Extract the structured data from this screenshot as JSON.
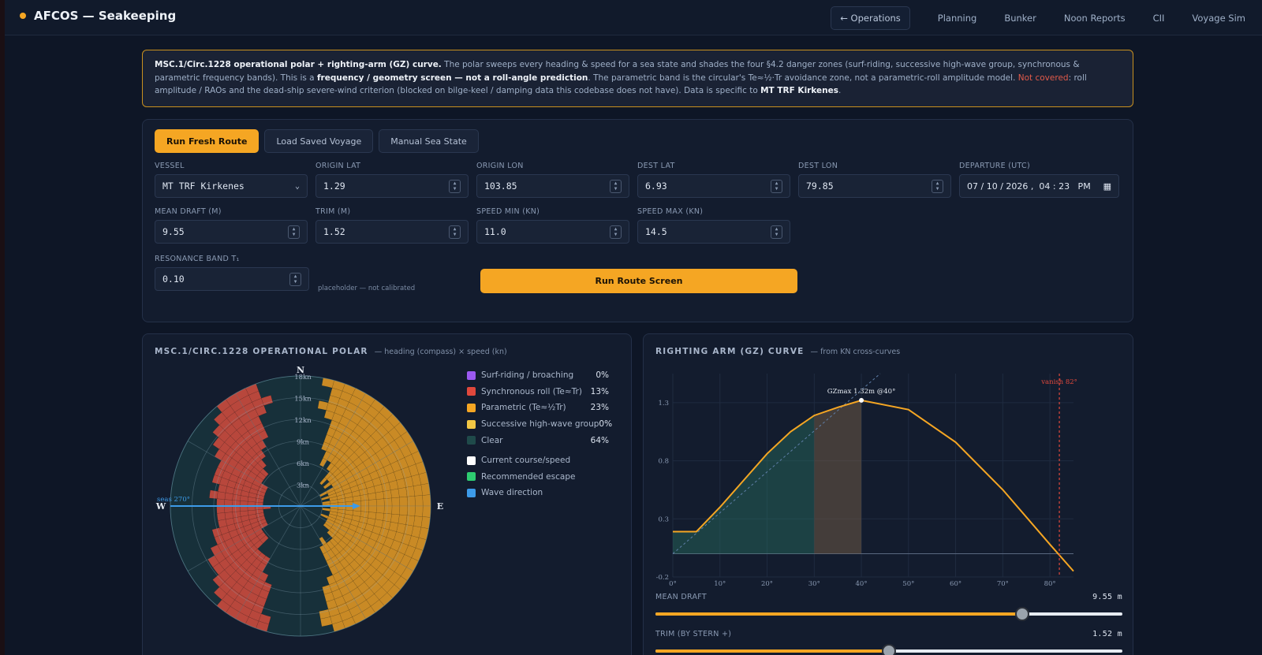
{
  "app": {
    "title": "AFCOS — Seakeeping"
  },
  "nav": {
    "back": "← Operations",
    "items": [
      "Planning",
      "Bunker",
      "Noon Reports",
      "CII",
      "Voyage Sim"
    ]
  },
  "notice": {
    "b1": "MSC.1/Circ.1228 operational polar + righting-arm (GZ) curve.",
    "t1": " The polar sweeps every heading & speed for a sea state and shades the four §4.2 danger zones (surf-riding, successive high-wave group, synchronous & parametric frequency bands). This is a ",
    "b2": "frequency / geometry screen — not a roll-angle prediction",
    "t2": ". The parametric band is the circular's Te≈½·Tr avoidance zone, not a parametric-roll amplitude model. ",
    "red": "Not covered",
    "t3": ": roll amplitude / RAOs and the dead-ship severe-wind criterion (blocked on bilge-keel / damping data this codebase does not have). Data is specific to ",
    "b3": "MT TRF Kirkenes",
    "t4": "."
  },
  "tabs": [
    "Run Fresh Route",
    "Load Saved Voyage",
    "Manual Sea State"
  ],
  "form": {
    "vessel": {
      "label": "VESSEL",
      "value": "MT TRF Kirkenes"
    },
    "origin_lat": {
      "label": "ORIGIN LAT",
      "value": "1.29"
    },
    "origin_lon": {
      "label": "ORIGIN LON",
      "value": "103.85"
    },
    "dest_lat": {
      "label": "DEST LAT",
      "value": "6.93"
    },
    "dest_lon": {
      "label": "DEST LON",
      "value": "79.85"
    },
    "departure": {
      "label": "DEPARTURE (UTC)",
      "value": "07 / 10 / 2026 ,  04 : 23   PM"
    },
    "mean_draft": {
      "label": "MEAN DRAFT (M)",
      "value": "9.55"
    },
    "trim": {
      "label": "TRIM (M)",
      "value": "1.52"
    },
    "speed_min": {
      "label": "SPEED MIN (KN)",
      "value": "11.0"
    },
    "speed_max": {
      "label": "SPEED MAX (KN)",
      "value": "14.5"
    },
    "resonance": {
      "label": "RESONANCE BAND T₁",
      "value": "0.10"
    },
    "hint": "placeholder — not calibrated",
    "run_label": "Run Route Screen"
  },
  "polar": {
    "title": "MSC.1/CIRC.1228 OPERATIONAL POLAR",
    "subtitle": "— heading (compass) × speed (kn)",
    "compass": {
      "n": "N",
      "e": "E",
      "w": "W"
    },
    "speed_rings": [
      "3kn",
      "6kn",
      "9kn",
      "12kn",
      "15kn",
      "18kn"
    ],
    "seas_label": "seas 270°",
    "legend": [
      {
        "label": "Surf-riding / broaching",
        "pct": "0%",
        "color": "#9b59f0"
      },
      {
        "label": "Synchronous roll (Te≈Tr)",
        "pct": "13%",
        "color": "#e0483c"
      },
      {
        "label": "Parametric (Te≈½Tr)",
        "pct": "23%",
        "color": "#f5a623"
      },
      {
        "label": "Successive high-wave group",
        "pct": "0%",
        "color": "#f2c744"
      },
      {
        "label": "Clear",
        "pct": "64%",
        "color": "#1f4a4a"
      }
    ],
    "legend2": [
      {
        "label": "Current course/speed",
        "color": "#ffffff"
      },
      {
        "label": "Recommended escape",
        "color": "#2ecc71"
      },
      {
        "label": "Wave direction",
        "color": "#3d9be9"
      }
    ],
    "colors": {
      "synchronous": "#b8473c",
      "parametric": "#c98a25",
      "clear": "#17303a",
      "wave": "#3d9be9"
    }
  },
  "gz": {
    "title": "RIGHTING ARM (GZ) CURVE",
    "subtitle": "— from KN cross-curves",
    "gzmax_label": "GZmax 1.32m @40°",
    "vanish_label": "vanish 82°",
    "sliders": [
      {
        "label": "MEAN DRAFT",
        "value": "9.55 m",
        "fraction": 0.785
      },
      {
        "label": "TRIM (BY STERN +)",
        "value": "1.52 m",
        "fraction": 0.5
      }
    ]
  },
  "chart_data": {
    "type": "line",
    "title": "RIGHTING ARM (GZ) CURVE",
    "xlabel": "",
    "ylabel": "",
    "x_ticks": [
      "0°",
      "10°",
      "20°",
      "30°",
      "40°",
      "50°",
      "60°",
      "70°",
      "80°"
    ],
    "y_ticks": [
      "-0.2",
      "0.3",
      "0.8",
      "1.3"
    ],
    "xlim": [
      0,
      85
    ],
    "ylim": [
      -0.2,
      1.55
    ],
    "grid": true,
    "series": [
      {
        "x": [
          0,
          5,
          10,
          15,
          20,
          25,
          30,
          35,
          40,
          50,
          60,
          70,
          80,
          85
        ],
        "y": [
          0.19,
          0.19,
          0.4,
          0.63,
          0.86,
          1.05,
          1.19,
          1.26,
          1.32,
          1.24,
          0.96,
          0.55,
          0.08,
          -0.15
        ]
      }
    ],
    "annotations": [
      "GZmax 1.32m @40°",
      "vanish 82°"
    ],
    "vanish_angle": 82,
    "gzmax": {
      "x": 40,
      "y": 1.32
    }
  }
}
